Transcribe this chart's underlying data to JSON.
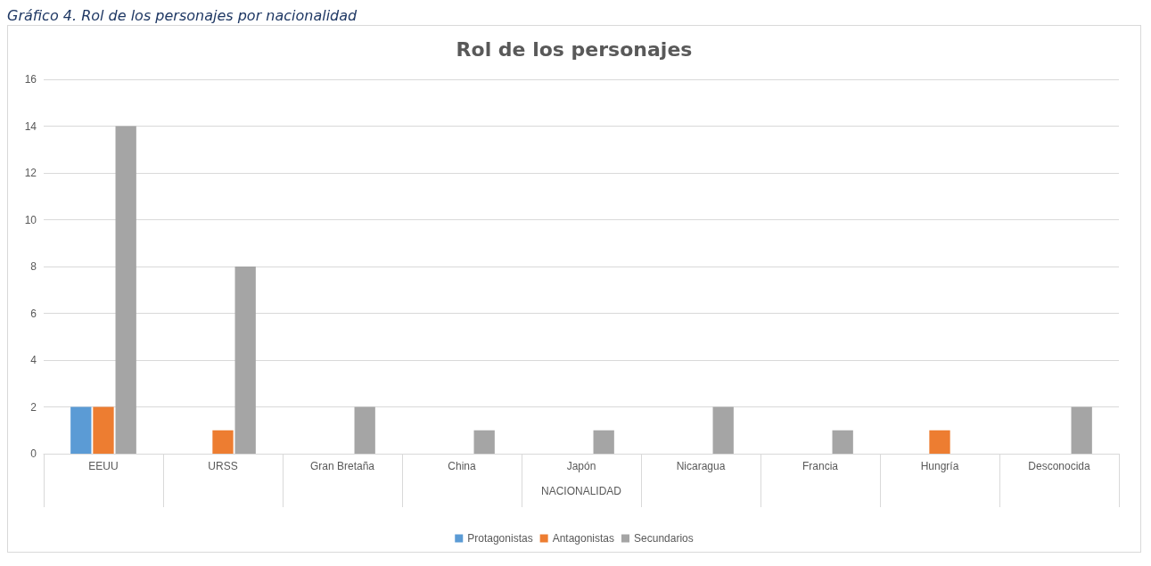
{
  "chart_data": {
    "type": "bar",
    "title": "Rol de los personajes",
    "annotations": [
      "Gráfico 4. Rol de los personajes por nacionalidad"
    ],
    "xlabel": "NACIONALIDAD",
    "categories": [
      "EEUU",
      "URSS",
      "Gran Bretaña",
      "China",
      "Japón",
      "Nicaragua",
      "Francia",
      "Hungría",
      "Desconocida"
    ],
    "series": [
      {
        "name": "Protagonistas",
        "color": "#5b9bd5",
        "values": [
          2,
          0,
          0,
          0,
          0,
          0,
          0,
          0,
          0
        ]
      },
      {
        "name": "Antagonistas",
        "color": "#ed7d31",
        "values": [
          2,
          1,
          0,
          0,
          0,
          0,
          0,
          1,
          0
        ]
      },
      {
        "name": "Secundarios",
        "color": "#a5a5a5",
        "values": [
          14,
          8,
          2,
          1,
          1,
          2,
          1,
          0,
          2
        ]
      }
    ],
    "ylim": [
      0,
      16
    ],
    "yticks": [
      0,
      2,
      4,
      6,
      8,
      10,
      12,
      14,
      16
    ],
    "grid": "y",
    "legend": "bottom"
  }
}
